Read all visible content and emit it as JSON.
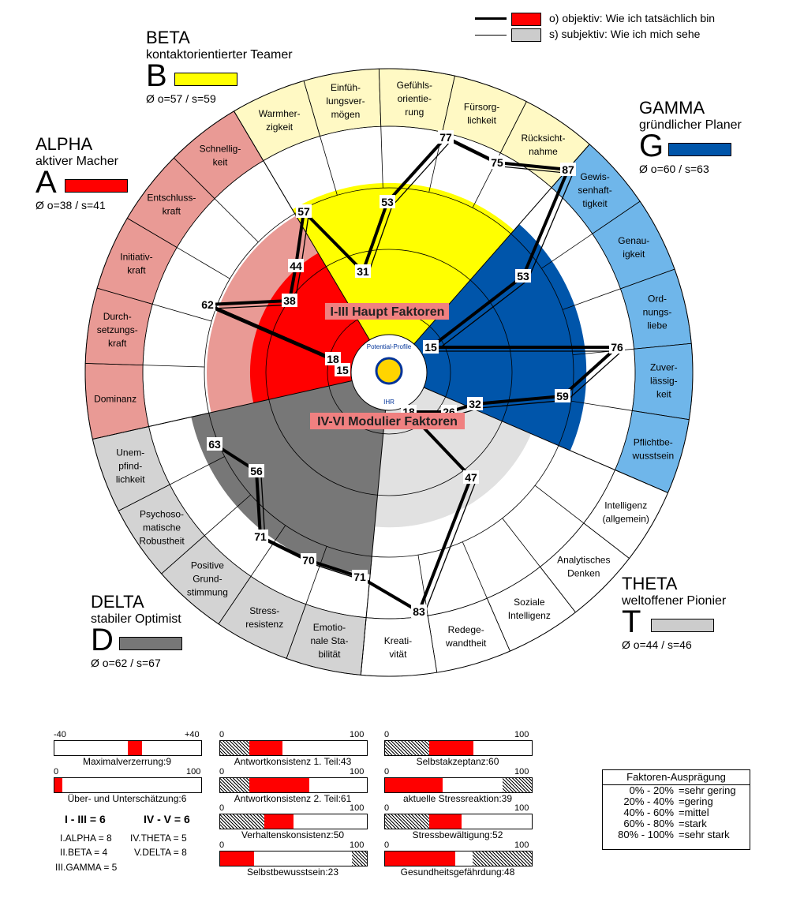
{
  "legend": {
    "objective": "o) objektiv: Wie ich tatsächlich bin",
    "subjective": "s) subjektiv: Wie ich mich sehe"
  },
  "groups": {
    "alpha": {
      "name": "ALPHA",
      "sub": "aktiver Macher",
      "letter": "A",
      "avg": "Ø o=38 / s=41",
      "color": "#ff0000"
    },
    "beta": {
      "name": "BETA",
      "sub": "kontaktorientierter Teamer",
      "letter": "B",
      "avg": "Ø o=57 / s=59",
      "color": "#ffff00"
    },
    "gamma": {
      "name": "GAMMA",
      "sub": "gründlicher Planer",
      "letter": "G",
      "avg": "Ø o=60 / s=63",
      "color": "#0055aa"
    },
    "delta": {
      "name": "DELTA",
      "sub": "stabiler Optimist",
      "letter": "D",
      "avg": "Ø o=62 / s=67",
      "color": "#777777"
    },
    "theta": {
      "name": "THETA",
      "sub": "weltoffener Pionier",
      "letter": "T",
      "avg": "Ø o=44 / s=46",
      "color": "#cccccc"
    }
  },
  "wheel": {
    "center_label_top": "I-III Haupt Faktoren",
    "center_label_bottom": "IV-VI Modulier Faktoren",
    "logo_text": "Potential-Profile",
    "logo_sub": "IHR",
    "sectors": [
      {
        "group": "alpha",
        "label": [
          "Dominanz"
        ]
      },
      {
        "group": "alpha",
        "label": [
          "Durch-",
          "setzungs-",
          "kraft"
        ]
      },
      {
        "group": "alpha",
        "label": [
          "Initiativ-",
          "kraft"
        ]
      },
      {
        "group": "alpha",
        "label": [
          "Entschluss-",
          "kraft"
        ]
      },
      {
        "group": "alpha",
        "label": [
          "Schnellig-",
          "keit"
        ]
      },
      {
        "group": "beta",
        "label": [
          "Warmher-",
          "zigkeit"
        ]
      },
      {
        "group": "beta",
        "label": [
          "Einfüh-",
          "lungsver-",
          "mögen"
        ]
      },
      {
        "group": "beta",
        "label": [
          "Gefühls-",
          "orientie-",
          "rung"
        ]
      },
      {
        "group": "beta",
        "label": [
          "Fürsorg-",
          "lichkeit"
        ]
      },
      {
        "group": "beta",
        "label": [
          "Rücksicht-",
          "nahme"
        ]
      },
      {
        "group": "gamma",
        "label": [
          "Gewis-",
          "senhaft-",
          "tigkeit"
        ]
      },
      {
        "group": "gamma",
        "label": [
          "Genau-",
          "igkeit"
        ]
      },
      {
        "group": "gamma",
        "label": [
          "Ord-",
          "nungs-",
          "liebe"
        ]
      },
      {
        "group": "gamma",
        "label": [
          "Zuver-",
          "lässig-",
          "keit"
        ]
      },
      {
        "group": "gamma",
        "label": [
          "Pflichtbe-",
          "wusstsein"
        ]
      },
      {
        "group": "theta",
        "label": [
          "Intelligenz",
          "(allgemein)"
        ]
      },
      {
        "group": "theta",
        "label": [
          "Analytisches",
          "Denken"
        ]
      },
      {
        "group": "theta",
        "label": [
          "Soziale",
          "Intelligenz"
        ]
      },
      {
        "group": "theta",
        "label": [
          "Redege-",
          "wandtheit"
        ]
      },
      {
        "group": "theta",
        "label": [
          "Kreati-",
          "vität"
        ]
      },
      {
        "group": "delta",
        "label": [
          "Emotio-",
          "nale Sta-",
          "bilität"
        ]
      },
      {
        "group": "delta",
        "label": [
          "Stress-",
          "resistenz"
        ]
      },
      {
        "group": "delta",
        "label": [
          "Positive",
          "Grund-",
          "stimmung"
        ]
      },
      {
        "group": "delta",
        "label": [
          "Psychoso-",
          "matische",
          "Robustheit"
        ]
      },
      {
        "group": "delta",
        "label": [
          "Unem-",
          "pfind-",
          "lichkeit"
        ]
      }
    ],
    "group_levels": {
      "alpha": 38,
      "beta": 57,
      "gamma": 60,
      "delta": 62,
      "theta": 44
    },
    "objective_values": [
      {
        "v": "15",
        "at": [
          434,
          469
        ]
      },
      {
        "v": "18",
        "at": [
          422,
          455
        ]
      },
      {
        "v": "62",
        "at": [
          263,
          386
        ]
      },
      {
        "v": "38",
        "at": [
          367,
          381
        ]
      },
      {
        "v": "44",
        "at": [
          375,
          337
        ]
      },
      {
        "v": "57",
        "at": [
          385,
          268
        ]
      },
      {
        "v": "31",
        "at": [
          460,
          344
        ]
      },
      {
        "v": "53",
        "at": [
          491,
          256
        ]
      },
      {
        "v": "77",
        "at": [
          565,
          174
        ]
      },
      {
        "v": "75",
        "at": [
          630,
          206
        ]
      },
      {
        "v": "87",
        "at": [
          720,
          215
        ]
      },
      {
        "v": "53",
        "at": [
          663,
          350
        ]
      },
      {
        "v": "15",
        "at": [
          546,
          440
        ]
      },
      {
        "v": "76",
        "at": [
          782,
          440
        ]
      },
      {
        "v": "59",
        "at": [
          713,
          502
        ]
      },
      {
        "v": "32",
        "at": [
          602,
          512
        ]
      },
      {
        "v": "26",
        "at": [
          569,
          522
        ]
      },
      {
        "v": "18",
        "at": [
          518,
          522
        ]
      },
      {
        "v": "47",
        "at": [
          597,
          605
        ]
      },
      {
        "v": "83",
        "at": [
          531,
          775
        ]
      },
      {
        "v": "71",
        "at": [
          456,
          731
        ]
      },
      {
        "v": "70",
        "at": [
          391,
          710
        ]
      },
      {
        "v": "71",
        "at": [
          330,
          680
        ]
      },
      {
        "v": "56",
        "at": [
          325,
          597
        ]
      },
      {
        "v": "63",
        "at": [
          272,
          563
        ]
      }
    ]
  },
  "bars": {
    "maximalverzerrung": {
      "label": "Maximalverzerrung:9",
      "min": "-40",
      "max": "+40",
      "value": 9
    },
    "ueber_unter": {
      "label": "Über- und Unterschätzung:6",
      "min": "0",
      "max": "100",
      "value": 6
    },
    "antwort1": {
      "label": "Antwortkonsistenz 1. Teil:43",
      "min": "0",
      "max": "100",
      "hatch": 20,
      "value": 43
    },
    "antwort2": {
      "label": "Antwortkonsistenz 2. Teil:61",
      "min": "0",
      "max": "100",
      "hatch": 20,
      "value": 61
    },
    "verhalten": {
      "label": "Verhaltenskonsistenz:50",
      "min": "0",
      "max": "100",
      "hatch": 20,
      "value": 50
    },
    "selbstbewusstsein": {
      "label": "Selbstbewusstsein:23",
      "min": "0",
      "max": "100",
      "value": 23,
      "hatch_end": 10
    },
    "selbstakzeptanz": {
      "label": "Selbstakzeptanz:60",
      "min": "0",
      "max": "100",
      "hatch": 30,
      "value": 60
    },
    "stressreaktion": {
      "label": "aktuelle Stressreaktion:39",
      "min": "0",
      "max": "100",
      "value": 39,
      "hatch_end": 20
    },
    "stressbewaeltigung": {
      "label": "Stressbewältigung:52",
      "min": "0",
      "max": "100",
      "hatch": 30,
      "value": 52
    },
    "gesundheit": {
      "label": "Gesundheitsgefährdung:48",
      "min": "0",
      "max": "100",
      "value": 48,
      "hatch_end": 40
    }
  },
  "info": {
    "left": "I - III  =  6",
    "right": "IV - V  =  6",
    "alpha": "I.ALPHA   =   8",
    "beta": "II.BETA    =   4",
    "gamma": "III.GAMMA =   5",
    "theta": "IV.THETA    =   5",
    "delta": "V.DELTA     =   8"
  },
  "faktoren": {
    "title": "Faktoren-Ausprägung",
    "rows": [
      [
        "0% - 20%",
        "=sehr gering"
      ],
      [
        "20% - 40%",
        "=gering"
      ],
      [
        "40% - 60%",
        "=mittel"
      ],
      [
        "60% - 80%",
        "=stark"
      ],
      [
        "80% - 100%",
        "=sehr stark"
      ]
    ]
  }
}
